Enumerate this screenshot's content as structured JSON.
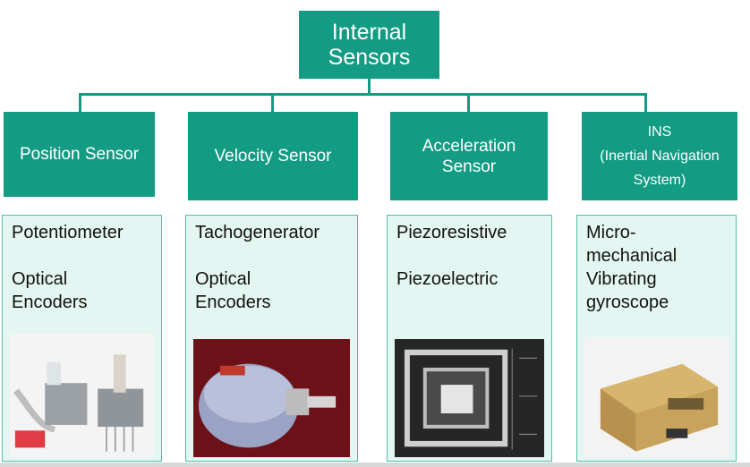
{
  "root": {
    "line1": "Internal",
    "line2": "Sensors"
  },
  "categories": [
    {
      "title": "Position Sensor",
      "items": [
        "Potentiometer",
        "Optical",
        "Encoders"
      ],
      "photo": "potentiometer-and-encoder-photo"
    },
    {
      "title": "Velocity Sensor",
      "items": [
        "Tachogenerator",
        "Optical",
        "Encoders"
      ],
      "photo": "tachogenerator-photo"
    },
    {
      "title_line1": "Acceleration",
      "title_line2": "Sensor",
      "items": [
        "Piezoresistive",
        "Piezoelectric"
      ],
      "photo": "mems-accelerometer-photo"
    },
    {
      "title_line1": "INS",
      "title_line2": "(Inertial Navigation",
      "title_line3": "System)",
      "items": [
        "Micro-",
        "mechanical",
        "Vibrating",
        "gyroscope"
      ],
      "photo": "gyroscope-unit-photo"
    }
  ],
  "colors": {
    "box": "#139b83",
    "panel": "#e4f6f1",
    "panel_border": "#4fbfa6"
  }
}
